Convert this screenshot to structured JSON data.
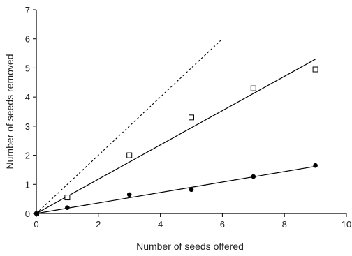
{
  "chart_data": {
    "type": "scatter",
    "title": "",
    "xlabel": "Number of seeds offered",
    "ylabel": "Number of seeds removed",
    "xlim": [
      0,
      10
    ],
    "ylim": [
      0,
      7
    ],
    "x_ticks": [
      0,
      2,
      4,
      6,
      8,
      10
    ],
    "y_ticks": [
      0,
      1,
      2,
      3,
      4,
      5,
      6,
      7
    ],
    "grid": false,
    "series": [
      {
        "marker": "open-square",
        "points": [
          [
            0,
            0
          ],
          [
            1,
            0.55
          ],
          [
            3,
            2.0
          ],
          [
            5,
            3.3
          ],
          [
            7,
            4.3
          ],
          [
            9,
            4.95
          ]
        ],
        "fit_line": {
          "from": [
            0,
            0
          ],
          "to": [
            9,
            5.3
          ]
        }
      },
      {
        "marker": "filled-circle",
        "points": [
          [
            0,
            0
          ],
          [
            1,
            0.2
          ],
          [
            3,
            0.65
          ],
          [
            5,
            0.82
          ],
          [
            7,
            1.27
          ],
          [
            9,
            1.65
          ]
        ],
        "fit_line": {
          "from": [
            0,
            0
          ],
          "to": [
            9,
            1.62
          ]
        }
      }
    ],
    "reference_line": {
      "style": "dotted",
      "from": [
        0,
        0
      ],
      "to": [
        6,
        6
      ]
    }
  }
}
